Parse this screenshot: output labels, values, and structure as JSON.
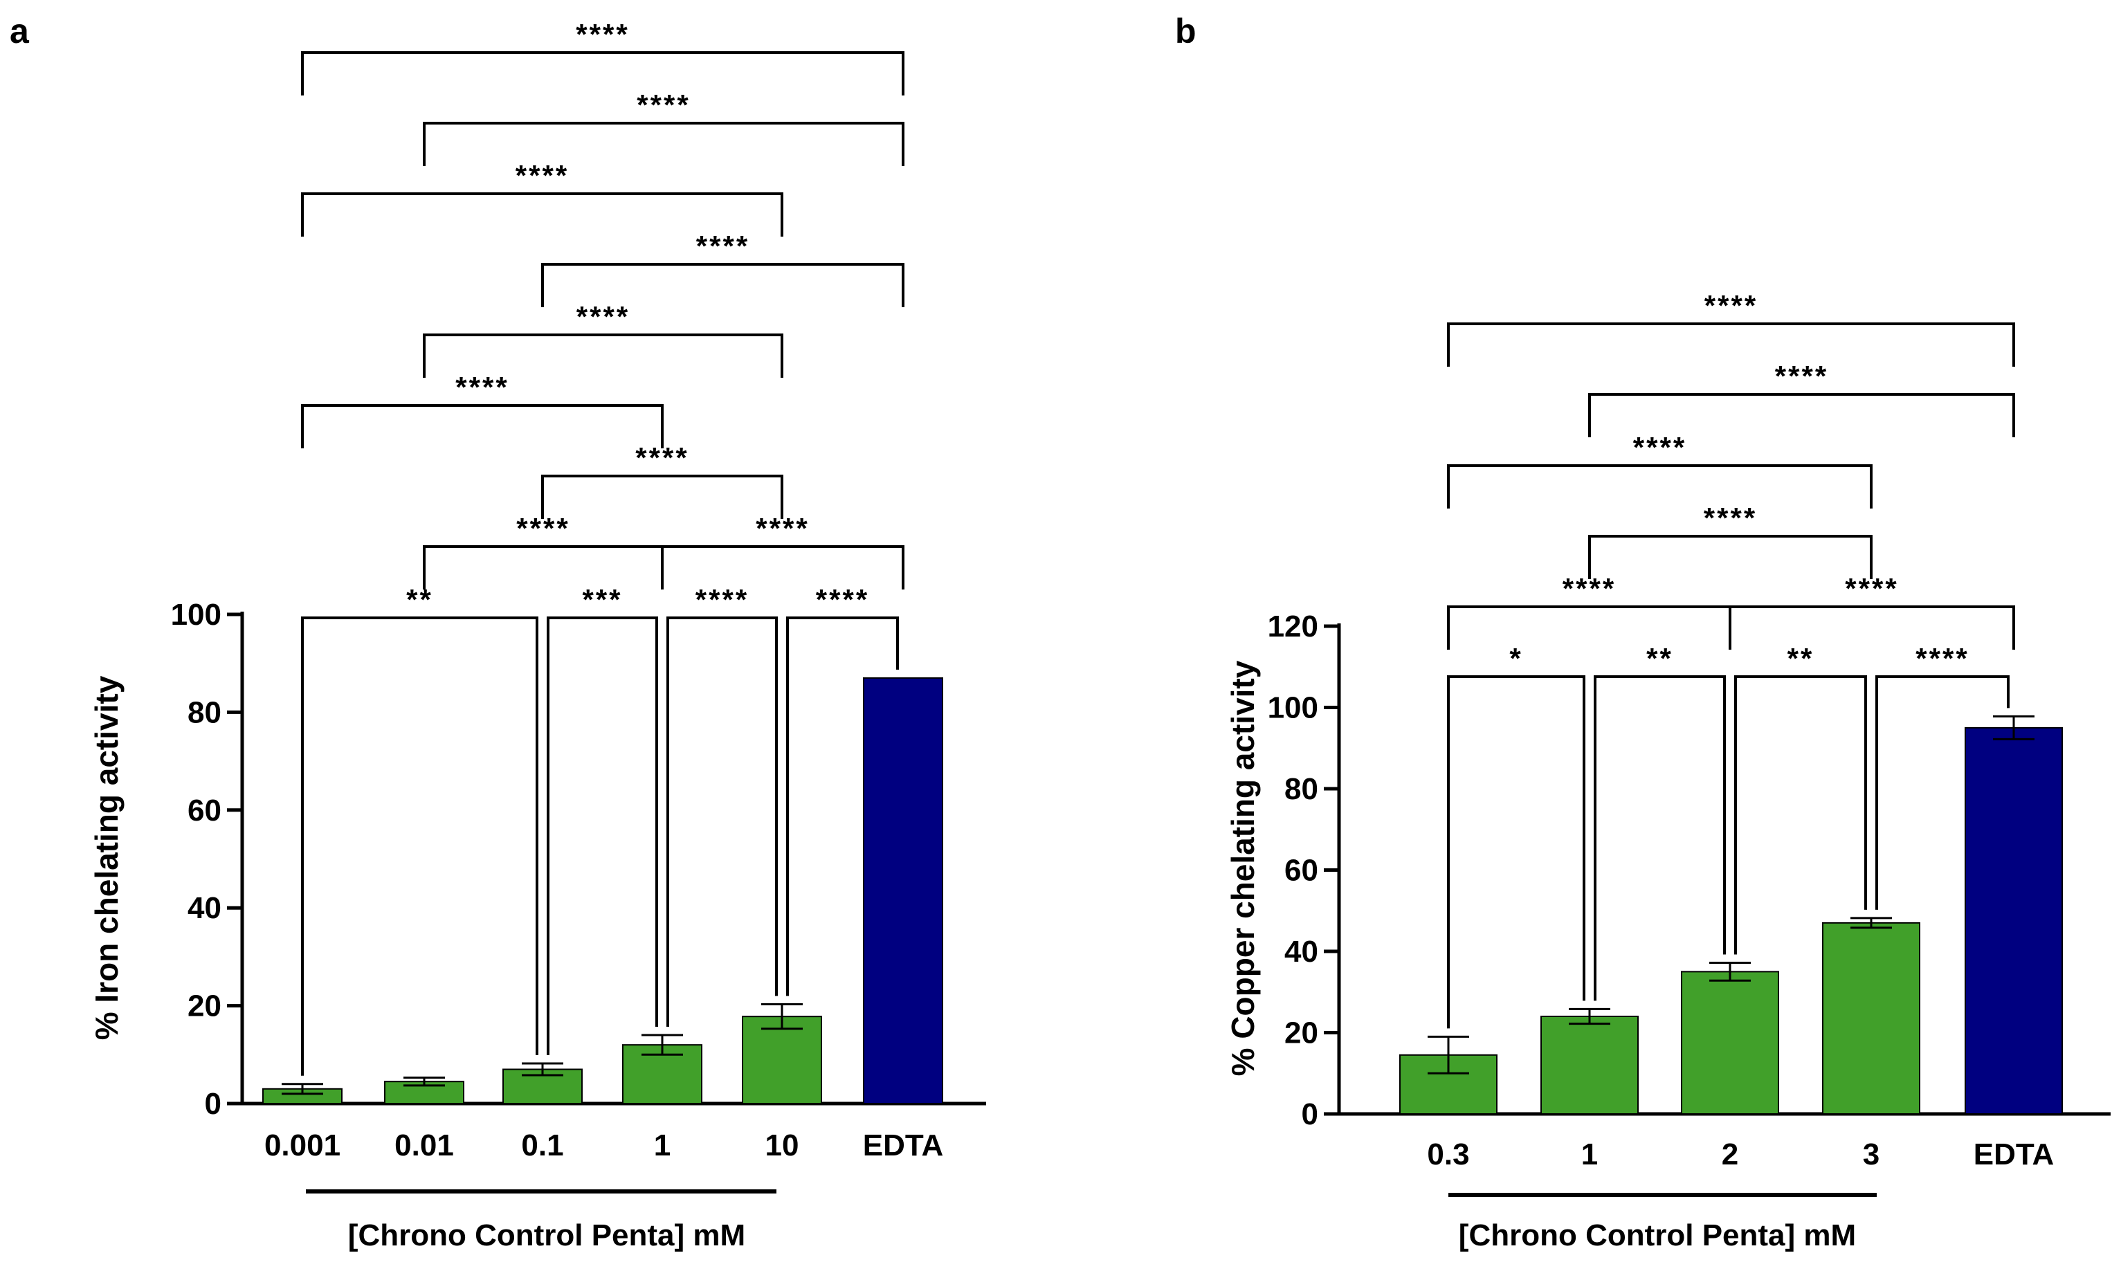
{
  "chart_data": [
    {
      "panel": "a",
      "type": "bar",
      "ylabel": "% Iron chelating activity",
      "xlabel": "[Chrono Control Penta] mM",
      "ylim": [
        0,
        100
      ],
      "yticks": [
        "0",
        "20",
        "40",
        "60",
        "80",
        "100"
      ],
      "categories": [
        "0.001",
        "0.01",
        "0.1",
        "1",
        "10",
        "EDTA"
      ],
      "values": [
        3,
        4.5,
        7,
        12,
        17.8,
        87
      ],
      "errors": [
        1,
        0.8,
        1.2,
        2,
        2.5,
        0
      ],
      "bar_colors": [
        "#41a02a",
        "#41a02a",
        "#41a02a",
        "#41a02a",
        "#41a02a",
        "#000080"
      ],
      "comparisons": [
        {
          "from": 0,
          "to": 5,
          "label": "****"
        },
        {
          "from": 1,
          "to": 5,
          "label": "****"
        },
        {
          "from": 0,
          "to": 4,
          "label": "****"
        },
        {
          "from": 2,
          "to": 5,
          "label": "****"
        },
        {
          "from": 1,
          "to": 4,
          "label": "****"
        },
        {
          "from": 0,
          "to": 3,
          "label": "****"
        },
        {
          "from": 2,
          "to": 4,
          "label": "****"
        },
        {
          "from": 1,
          "to": 3,
          "label": "****"
        },
        {
          "from": 3,
          "to": 5,
          "label": "****"
        },
        {
          "from": 0,
          "to": 2,
          "label": "**"
        },
        {
          "from": 2,
          "to": 3,
          "label": "***"
        },
        {
          "from": 3,
          "to": 4,
          "label": "****"
        },
        {
          "from": 4,
          "to": 5,
          "label": "****"
        }
      ]
    },
    {
      "panel": "b",
      "type": "bar",
      "ylabel": "% Copper chelating activity",
      "xlabel": "[Chrono Control Penta] mM",
      "ylim": [
        0,
        120
      ],
      "yticks": [
        "0",
        "20",
        "40",
        "60",
        "80",
        "100",
        "120"
      ],
      "categories": [
        "0.3",
        "1",
        "2",
        "3",
        "EDTA"
      ],
      "values": [
        14.5,
        24,
        35,
        47,
        95
      ],
      "errors": [
        4.5,
        1.8,
        2.2,
        1.2,
        2.8
      ],
      "bar_colors": [
        "#41a02a",
        "#41a02a",
        "#41a02a",
        "#41a02a",
        "#000080"
      ],
      "comparisons": [
        {
          "from": 0,
          "to": 4,
          "label": "****"
        },
        {
          "from": 1,
          "to": 4,
          "label": "****"
        },
        {
          "from": 0,
          "to": 3,
          "label": "****"
        },
        {
          "from": 1,
          "to": 3,
          "label": "****"
        },
        {
          "from": 0,
          "to": 2,
          "label": "****"
        },
        {
          "from": 2,
          "to": 4,
          "label": "****"
        },
        {
          "from": 0,
          "to": 1,
          "label": "*"
        },
        {
          "from": 1,
          "to": 2,
          "label": "**"
        },
        {
          "from": 2,
          "to": 3,
          "label": "**"
        },
        {
          "from": 3,
          "to": 4,
          "label": "****"
        }
      ]
    }
  ]
}
